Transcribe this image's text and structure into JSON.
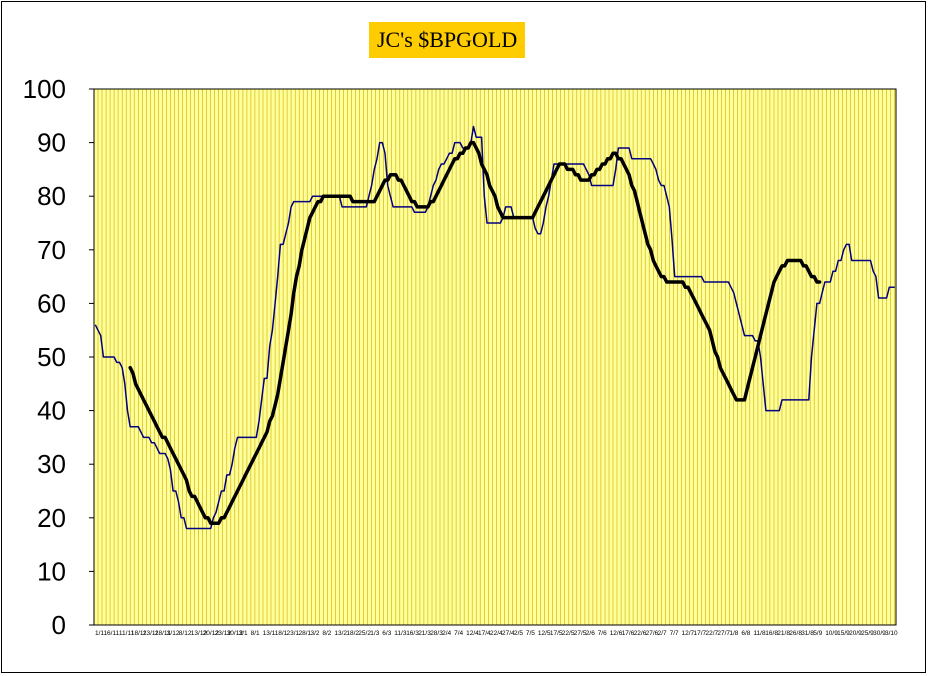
{
  "chart_data": {
    "type": "line",
    "title": "JC's $BPGOLD",
    "xlabel": "",
    "ylabel": "",
    "ylim": [
      0,
      100
    ],
    "yticks": [
      0,
      10,
      20,
      30,
      40,
      50,
      60,
      70,
      80,
      90,
      100
    ],
    "grid": "vertical",
    "legend": "none",
    "x_tick_labels": [
      "1/11",
      "6/11",
      "11/11",
      "18/11",
      "23/11",
      "28/11",
      "3/12",
      "8/12",
      "13/12",
      "20/12",
      "23/12",
      "30/12",
      "3/1",
      "8/1",
      "13/1",
      "18/1",
      "23/1",
      "28/1",
      "3/2",
      "8/2",
      "13/2",
      "18/2",
      "25/2",
      "1/3",
      "6/3",
      "11/3",
      "16/3",
      "21/3",
      "28/3",
      "2/4",
      "7/4",
      "12/4",
      "17/4",
      "22/4",
      "27/4",
      "2/5",
      "7/5",
      "12/5",
      "17/5",
      "22/5",
      "27/5",
      "2/6",
      "7/6",
      "12/6",
      "17/6",
      "22/6",
      "27/6",
      "2/7",
      "7/7",
      "12/7",
      "17/7",
      "22/7",
      "27/7",
      "1/8",
      "6/8",
      "11/8",
      "16/8",
      "21/8",
      "26/8",
      "31/8",
      "5/9",
      "10/9",
      "15/9",
      "20/9",
      "25/9",
      "30/9",
      "3/10"
    ],
    "colors": {
      "plot_bg": "#ffff99",
      "grid": "#ccaa00",
      "plot_border": "#000000",
      "title_bg": "#ffcc00",
      "series_raw": "#000080",
      "series_avg": "#000000"
    },
    "series": [
      {
        "values": [
          56,
          55,
          54,
          50,
          50,
          50,
          50,
          50,
          49,
          49,
          48,
          45,
          40,
          37,
          37,
          37,
          37,
          36,
          35,
          35,
          35,
          34,
          34,
          33,
          32,
          32,
          32,
          31,
          29,
          25,
          25,
          23,
          20,
          20,
          18,
          18,
          18,
          18,
          18,
          18,
          18,
          18,
          18,
          18,
          20,
          21,
          23,
          25,
          25,
          28,
          28,
          30,
          33,
          35,
          35,
          35,
          35,
          35,
          35,
          35,
          35,
          38,
          42,
          46,
          46,
          52,
          55,
          60,
          65,
          71,
          71,
          73,
          75,
          78,
          79,
          79,
          79,
          79,
          79,
          79,
          79,
          80,
          80,
          80,
          80,
          80,
          80,
          80,
          80,
          80,
          80,
          80,
          78,
          78,
          78,
          78,
          78,
          78,
          78,
          78,
          78,
          78,
          80,
          82,
          85,
          87,
          90,
          90,
          88,
          82,
          80,
          78,
          78,
          78,
          78,
          78,
          78,
          78,
          78,
          77,
          77,
          77,
          77,
          77,
          78,
          80,
          82,
          83,
          85,
          86,
          86,
          87,
          88,
          88,
          90,
          90,
          90,
          89,
          89,
          89,
          90,
          93,
          91,
          91,
          91,
          80,
          75,
          75,
          75,
          75,
          75,
          75,
          76,
          78,
          78,
          78,
          76,
          76,
          76,
          76,
          76,
          76,
          76,
          76,
          74,
          73,
          73,
          75,
          78,
          80,
          83,
          86,
          86,
          86,
          86,
          86,
          86,
          86,
          86,
          86,
          86,
          86,
          86,
          85,
          84,
          82,
          82,
          82,
          82,
          82,
          82,
          82,
          82,
          82,
          85,
          89,
          89,
          89,
          89,
          89,
          87,
          87,
          87,
          87,
          87,
          87,
          87,
          87,
          86,
          85,
          83,
          82,
          82,
          80,
          78,
          72,
          65,
          65,
          65,
          65,
          65,
          65,
          65,
          65,
          65,
          65,
          65,
          64,
          64,
          64,
          64,
          64,
          64,
          64,
          64,
          64,
          64,
          63,
          62,
          60,
          58,
          56,
          54,
          54,
          54,
          54,
          53,
          53,
          50,
          45,
          40,
          40,
          40,
          40,
          40,
          40,
          42,
          42,
          42,
          42,
          42,
          42,
          42,
          42,
          42,
          42,
          42,
          50,
          55,
          60,
          60,
          62,
          64,
          64,
          64,
          66,
          66,
          68,
          68,
          70,
          71,
          71,
          68,
          68,
          68,
          68,
          68,
          68,
          68,
          68,
          66,
          65,
          61,
          61,
          61,
          61,
          63,
          63,
          63
        ]
      },
      {
        "start_index": 13,
        "values": [
          48,
          47,
          45,
          44,
          43,
          42,
          41,
          40,
          39,
          38,
          37,
          36,
          35,
          35,
          34,
          33,
          32,
          31,
          30,
          29,
          28,
          27,
          25,
          24,
          24,
          23,
          22,
          21,
          20,
          20,
          19,
          19,
          19,
          19,
          20,
          20,
          21,
          22,
          23,
          24,
          25,
          26,
          27,
          28,
          29,
          30,
          31,
          32,
          33,
          34,
          35,
          36,
          38,
          39,
          41,
          43,
          46,
          49,
          52,
          55,
          58,
          62,
          65,
          67,
          70,
          72,
          74,
          76,
          77,
          78,
          79,
          79,
          80,
          80,
          80,
          80,
          80,
          80,
          80,
          80,
          80,
          80,
          80,
          79,
          79,
          79,
          79,
          79,
          79,
          79,
          79,
          79,
          80,
          81,
          82,
          83,
          83,
          84,
          84,
          84,
          83,
          83,
          82,
          81,
          80,
          79,
          79,
          78,
          78,
          78,
          78,
          78,
          79,
          79,
          80,
          81,
          82,
          83,
          84,
          85,
          86,
          87,
          87,
          88,
          88,
          89,
          89,
          90,
          90,
          89,
          88,
          86,
          85,
          84,
          82,
          81,
          80,
          78,
          77,
          76,
          76,
          76,
          76,
          76,
          76,
          76,
          76,
          76,
          76,
          76,
          76,
          77,
          78,
          79,
          80,
          81,
          82,
          83,
          84,
          85,
          86,
          86,
          86,
          85,
          85,
          85,
          84,
          84,
          83,
          83,
          83,
          83,
          84,
          84,
          85,
          85,
          86,
          86,
          87,
          87,
          88,
          88,
          87,
          87,
          86,
          85,
          84,
          82,
          81,
          79,
          77,
          75,
          73,
          71,
          70,
          68,
          67,
          66,
          65,
          65,
          64,
          64,
          64,
          64,
          64,
          64,
          64,
          63,
          63,
          62,
          61,
          60,
          59,
          58,
          57,
          56,
          55,
          53,
          51,
          50,
          48,
          47,
          46,
          45,
          44,
          43,
          42,
          42,
          42,
          42,
          44,
          46,
          48,
          50,
          52,
          54,
          56,
          58,
          60,
          62,
          64,
          65,
          66,
          67,
          67,
          68,
          68,
          68,
          68,
          68,
          68,
          67,
          67,
          66,
          65,
          65,
          64,
          64
        ]
      }
    ]
  }
}
